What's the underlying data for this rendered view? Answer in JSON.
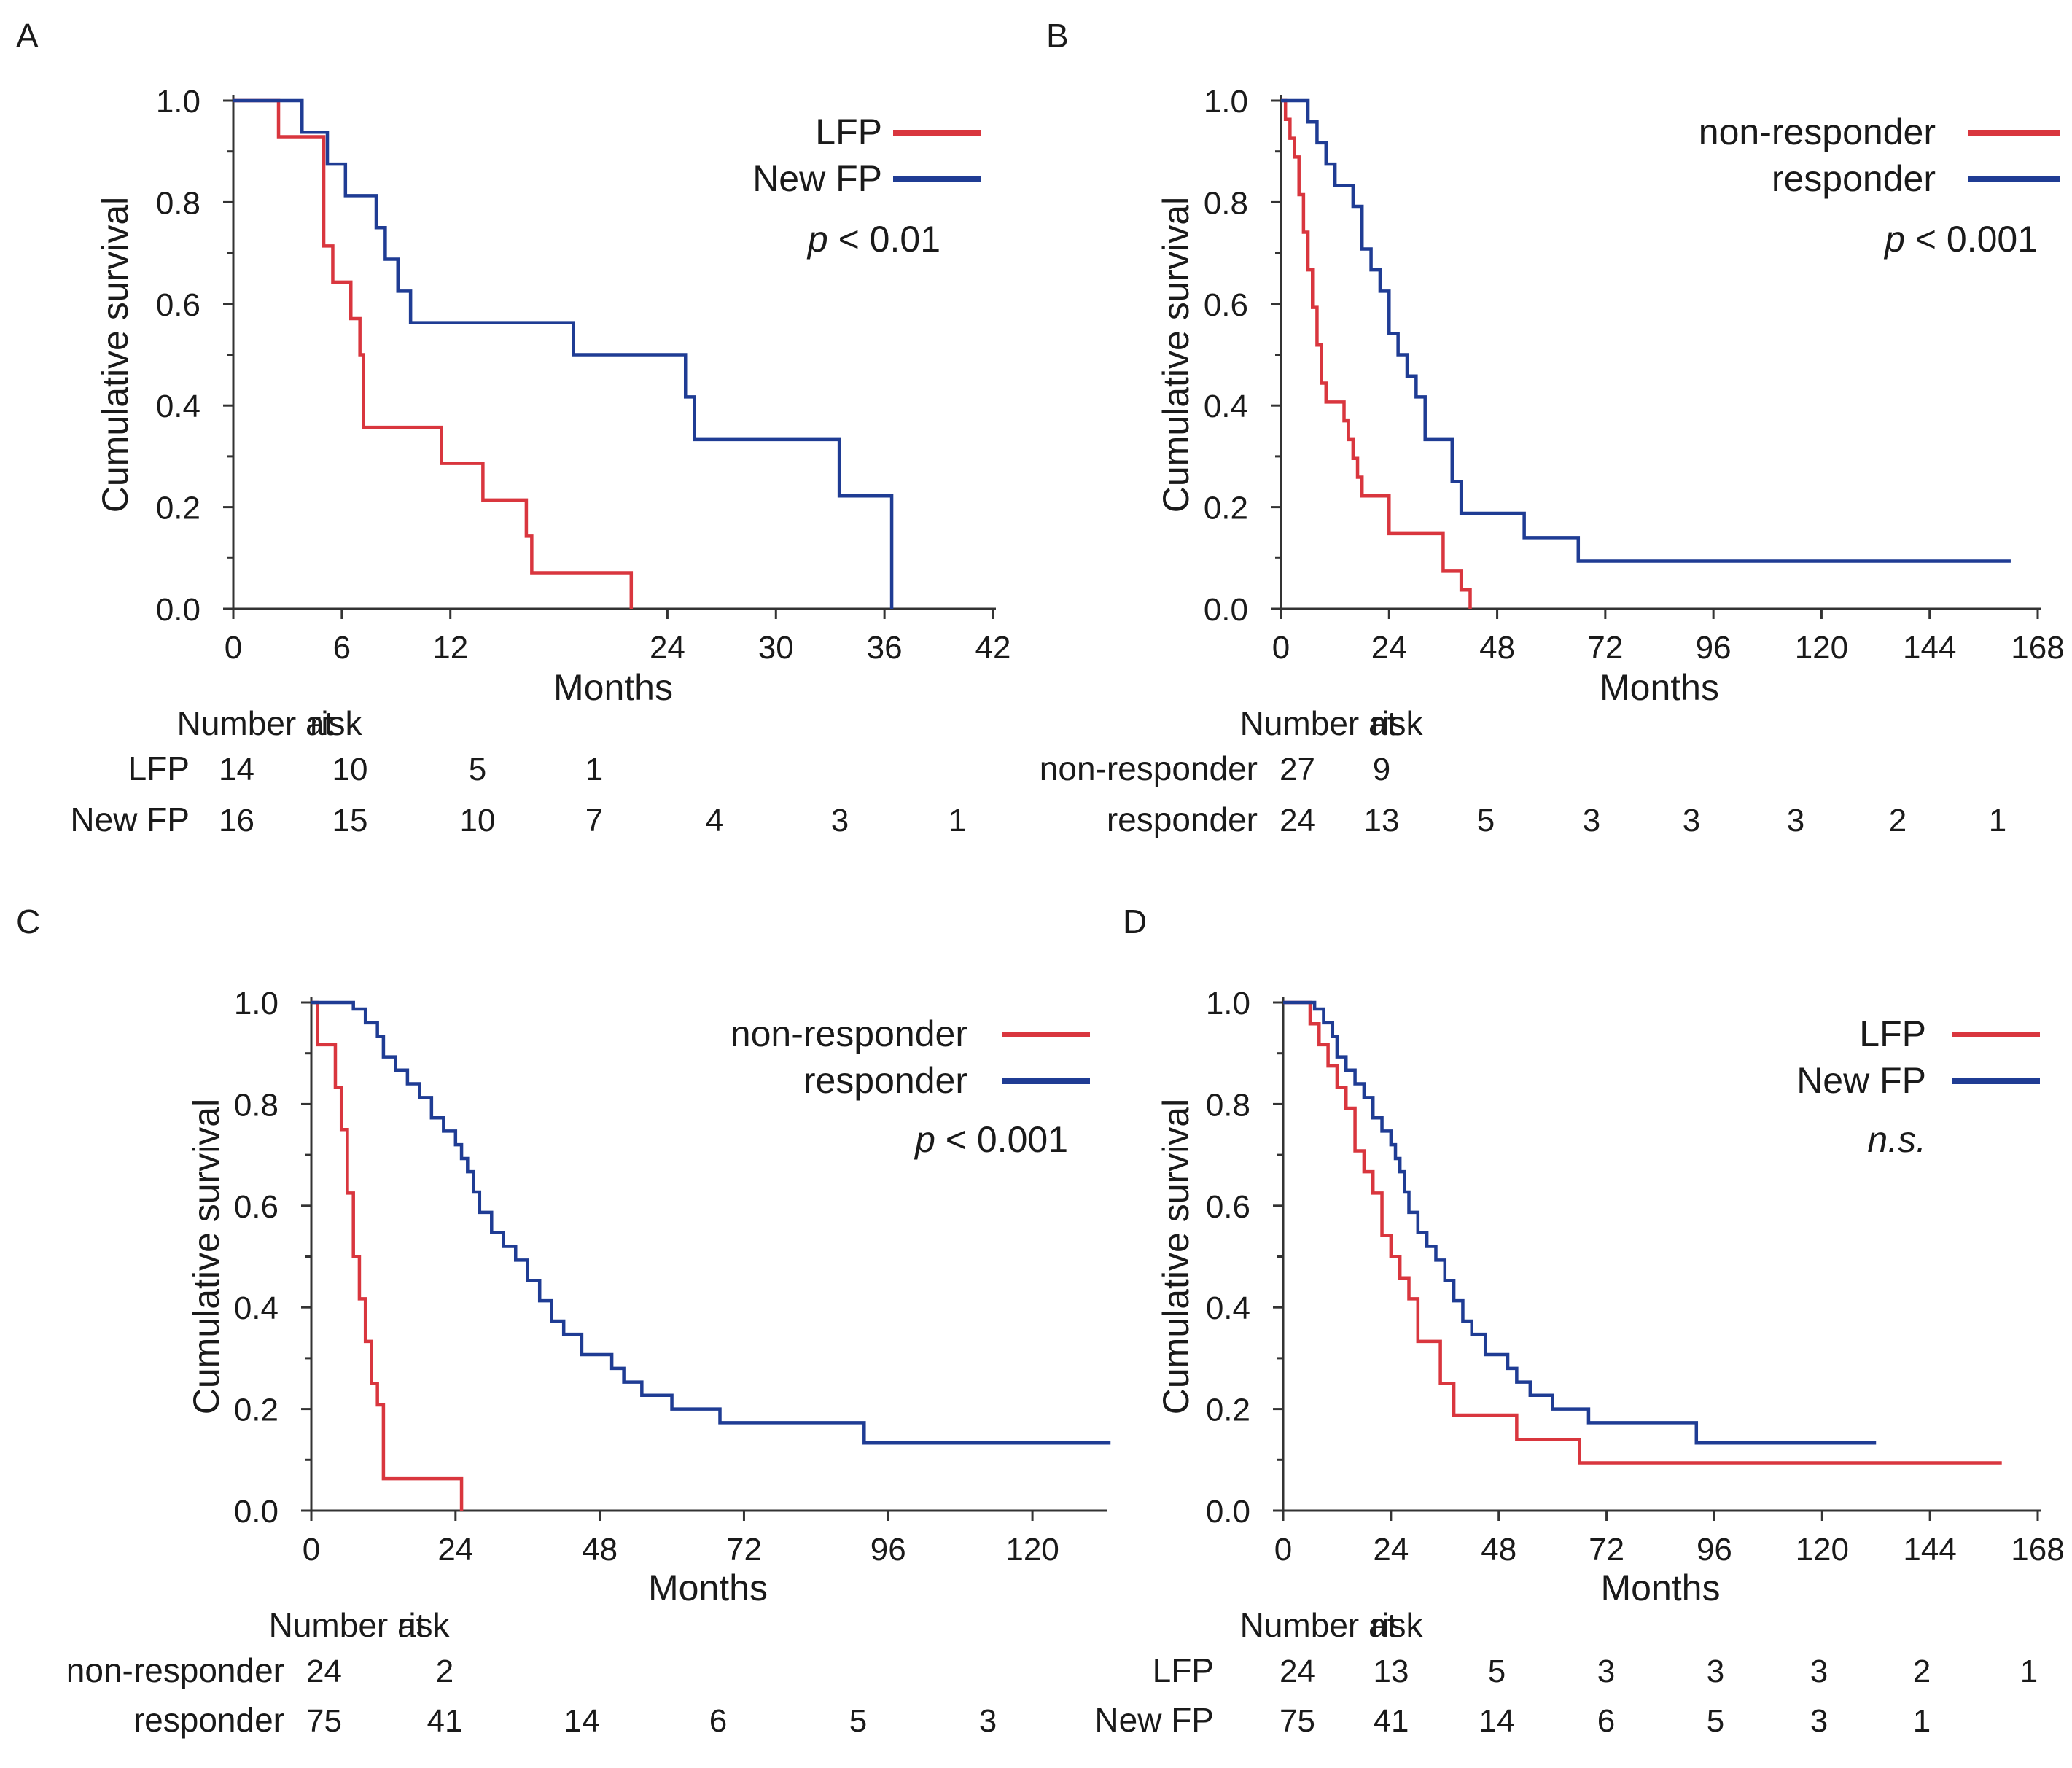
{
  "figure": {
    "panels": [
      {
        "label": "A",
        "legend_items": [
          {
            "text": "LFP",
            "color": "#d9363e"
          },
          {
            "text": "New FP",
            "color": "#1f3c94"
          }
        ],
        "p_prefix": "p",
        "p_rest": " < 0.01",
        "risk_title_a": "Number at",
        "risk_title_b": "risk",
        "risk_rows": [
          {
            "label": "LFP",
            "counts": [
              "14",
              "10",
              "5",
              "1"
            ]
          },
          {
            "label": "New FP",
            "counts": [
              "16",
              "15",
              "10",
              "7",
              "4",
              "3",
              "1"
            ]
          }
        ]
      },
      {
        "label": "B",
        "legend_items": [
          {
            "text": "non-responder",
            "color": "#d9363e"
          },
          {
            "text": "responder",
            "color": "#1f3c94"
          }
        ],
        "p_prefix": "p",
        "p_rest": " < 0.001",
        "risk_title_a": "Number at",
        "risk_title_b": "risk",
        "risk_rows": [
          {
            "label": "non-responder",
            "counts": [
              "27",
              "9"
            ]
          },
          {
            "label": "responder",
            "counts": [
              "24",
              "13",
              "5",
              "3",
              "3",
              "3",
              "2",
              "1"
            ]
          }
        ]
      },
      {
        "label": "C",
        "legend_items": [
          {
            "text": "non-responder",
            "color": "#d9363e"
          },
          {
            "text": "responder",
            "color": "#1f3c94"
          }
        ],
        "p_prefix": "p",
        "p_rest": " < 0.001",
        "risk_title_a": "Number at",
        "risk_title_b": "risk",
        "risk_rows": [
          {
            "label": "non-responder",
            "counts": [
              "24",
              "2"
            ]
          },
          {
            "label": "responder",
            "counts": [
              "75",
              "41",
              "14",
              "6",
              "5",
              "3"
            ]
          }
        ]
      },
      {
        "label": "D",
        "legend_items": [
          {
            "text": "LFP",
            "color": "#d9363e"
          },
          {
            "text": "New FP",
            "color": "#1f3c94"
          }
        ],
        "p_prefix": "",
        "p_rest": "n.s.",
        "risk_title_a": "Number at",
        "risk_title_b": "risk",
        "risk_rows": [
          {
            "label": "LFP",
            "counts": [
              "24",
              "13",
              "5",
              "3",
              "3",
              "3",
              "2",
              "1"
            ]
          },
          {
            "label": "New FP",
            "counts": [
              "75",
              "41",
              "14",
              "6",
              "5",
              "3",
              "1"
            ]
          }
        ]
      }
    ]
  },
  "chart_data": [
    {
      "panel": "A",
      "type": "line",
      "title": "",
      "xlabel": "Months",
      "ylabel": "Cumulative survival",
      "xlim": [
        0,
        42
      ],
      "ylim": [
        0,
        1
      ],
      "xticks": [
        0,
        6,
        12,
        24,
        30,
        36,
        42
      ],
      "yticks": [
        0,
        0.2,
        0.4,
        0.6,
        0.8,
        1.0
      ],
      "ytick_labels": [
        "0.0",
        "0.2",
        "0.4",
        "0.6",
        "0.8",
        "1.0"
      ],
      "legend": "top-right",
      "series": [
        {
          "name": "LFP",
          "color": "#d9363e",
          "x": [
            0,
            2.5,
            5.0,
            5.5,
            6.5,
            7.0,
            7.2,
            11.5,
            13.8,
            16.2,
            16.5,
            22.0
          ],
          "y": [
            1.0,
            0.929,
            0.714,
            0.643,
            0.571,
            0.5,
            0.357,
            0.286,
            0.214,
            0.143,
            0.071,
            0.0
          ]
        },
        {
          "name": "New FP",
          "color": "#1f3c94",
          "x": [
            0,
            3.8,
            5.2,
            6.2,
            7.9,
            8.4,
            9.1,
            9.8,
            18.8,
            25.0,
            25.5,
            26.1,
            33.5,
            36.4
          ],
          "y": [
            1.0,
            0.938,
            0.875,
            0.813,
            0.75,
            0.688,
            0.625,
            0.563,
            0.5,
            0.417,
            0.333,
            0.333,
            0.222,
            0.0
          ]
        }
      ]
    },
    {
      "panel": "B",
      "type": "line",
      "title": "",
      "xlabel": "Months",
      "ylabel": "Cumulative survival",
      "xlim": [
        0,
        168
      ],
      "ylim": [
        0,
        1
      ],
      "xticks": [
        0,
        24,
        48,
        72,
        96,
        120,
        144,
        168
      ],
      "yticks": [
        0,
        0.2,
        0.4,
        0.6,
        0.8,
        1.0
      ],
      "ytick_labels": [
        "0.0",
        "0.2",
        "0.4",
        "0.6",
        "0.8",
        "1.0"
      ],
      "legend": "top-right",
      "series": [
        {
          "name": "non-responder",
          "color": "#d9363e",
          "x": [
            0,
            1,
            2,
            3,
            4,
            5,
            6,
            7,
            8,
            9,
            10,
            14,
            15,
            16,
            17,
            18,
            24,
            36,
            40,
            42
          ],
          "y": [
            1.0,
            0.963,
            0.926,
            0.889,
            0.815,
            0.741,
            0.667,
            0.593,
            0.519,
            0.444,
            0.407,
            0.37,
            0.333,
            0.296,
            0.259,
            0.222,
            0.148,
            0.074,
            0.037,
            0.0
          ]
        },
        {
          "name": "responder",
          "color": "#1f3c94",
          "x": [
            0,
            6,
            8,
            10,
            12,
            16,
            18,
            20,
            22,
            24,
            26,
            28,
            30,
            32,
            38,
            40,
            54,
            66,
            162
          ],
          "y": [
            1.0,
            0.958,
            0.917,
            0.875,
            0.833,
            0.792,
            0.708,
            0.667,
            0.625,
            0.542,
            0.5,
            0.458,
            0.417,
            0.333,
            0.25,
            0.188,
            0.14,
            0.094,
            0.094
          ]
        }
      ]
    },
    {
      "panel": "C",
      "type": "line",
      "title": "",
      "xlabel": "Months",
      "ylabel": "Cumulative survival",
      "xlim": [
        0,
        132
      ],
      "ylim": [
        0,
        1
      ],
      "xticks": [
        0,
        24,
        48,
        72,
        96,
        120
      ],
      "yticks": [
        0,
        0.2,
        0.4,
        0.6,
        0.8,
        1.0
      ],
      "ytick_labels": [
        "0.0",
        "0.2",
        "0.4",
        "0.6",
        "0.8",
        "1.0"
      ],
      "legend": "top-right",
      "series": [
        {
          "name": "non-responder",
          "color": "#d9363e",
          "x": [
            0,
            1,
            4,
            5,
            6,
            7,
            8,
            9,
            10,
            11,
            12,
            25
          ],
          "y": [
            1.0,
            0.917,
            0.833,
            0.75,
            0.625,
            0.5,
            0.417,
            0.333,
            0.25,
            0.208,
            0.063,
            0.0
          ]
        },
        {
          "name": "responder",
          "color": "#1f3c94",
          "x": [
            0,
            7,
            9,
            11,
            12,
            14,
            16,
            18,
            20,
            22,
            24,
            25,
            26,
            27,
            28,
            30,
            32,
            34,
            36,
            38,
            40,
            42,
            45,
            50,
            52,
            55,
            60,
            68,
            72,
            92,
            133
          ],
          "y": [
            1.0,
            0.987,
            0.96,
            0.933,
            0.893,
            0.867,
            0.84,
            0.813,
            0.773,
            0.747,
            0.72,
            0.693,
            0.667,
            0.627,
            0.587,
            0.547,
            0.52,
            0.493,
            0.453,
            0.413,
            0.373,
            0.347,
            0.307,
            0.28,
            0.253,
            0.227,
            0.2,
            0.173,
            0.173,
            0.133,
            0.133
          ]
        }
      ]
    },
    {
      "panel": "D",
      "type": "line",
      "title": "",
      "xlabel": "Months",
      "ylabel": "Cumulative survival",
      "xlim": [
        0,
        168
      ],
      "ylim": [
        0,
        1
      ],
      "xticks": [
        0,
        24,
        48,
        72,
        96,
        120,
        144,
        168
      ],
      "yticks": [
        0,
        0.2,
        0.4,
        0.6,
        0.8,
        1.0
      ],
      "ytick_labels": [
        "0.0",
        "0.2",
        "0.4",
        "0.6",
        "0.8",
        "1.0"
      ],
      "legend": "top-right",
      "series": [
        {
          "name": "LFP",
          "color": "#d9363e",
          "x": [
            0,
            6,
            8,
            10,
            12,
            14,
            16,
            18,
            20,
            22,
            24,
            26,
            28,
            30,
            35,
            38,
            42,
            52,
            64,
            66,
            160
          ],
          "y": [
            1.0,
            0.958,
            0.917,
            0.875,
            0.833,
            0.792,
            0.708,
            0.667,
            0.625,
            0.542,
            0.5,
            0.458,
            0.417,
            0.333,
            0.25,
            0.188,
            0.188,
            0.14,
            0.14,
            0.094,
            0.094
          ]
        },
        {
          "name": "New FP",
          "color": "#1f3c94",
          "x": [
            0,
            7,
            9,
            11,
            12,
            14,
            16,
            18,
            20,
            22,
            24,
            25,
            26,
            27,
            28,
            30,
            32,
            34,
            36,
            38,
            40,
            42,
            45,
            50,
            52,
            55,
            60,
            68,
            72,
            92,
            132
          ],
          "y": [
            1.0,
            0.987,
            0.96,
            0.933,
            0.893,
            0.867,
            0.84,
            0.813,
            0.773,
            0.747,
            0.72,
            0.693,
            0.667,
            0.627,
            0.587,
            0.547,
            0.52,
            0.493,
            0.453,
            0.413,
            0.373,
            0.347,
            0.307,
            0.28,
            0.253,
            0.227,
            0.2,
            0.173,
            0.173,
            0.133,
            0.133
          ]
        }
      ]
    }
  ]
}
